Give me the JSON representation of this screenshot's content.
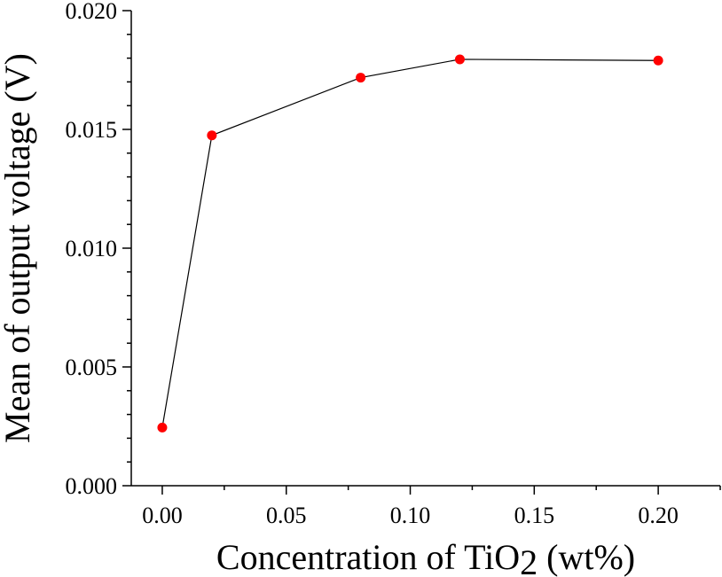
{
  "chart_data": {
    "type": "line",
    "xlabel": "Concentration of TiO",
    "xlabel_sub": "2",
    "xlabel_tail": " (wt%)",
    "ylabel": "Mean of output voltage (V)",
    "xlim": [
      -0.0125,
      0.225
    ],
    "ylim": [
      0.0,
      0.02
    ],
    "x_ticks": [
      0.0,
      0.05,
      0.1,
      0.15,
      0.2
    ],
    "x_tick_labels": [
      "0.00",
      "0.05",
      "0.10",
      "0.15",
      "0.20"
    ],
    "y_ticks": [
      0.0,
      0.005,
      0.01,
      0.015,
      0.02
    ],
    "y_tick_labels": [
      "0.000",
      "0.005",
      "0.010",
      "0.015",
      "0.020"
    ],
    "grid": false,
    "series": [
      {
        "x": [
          0.0,
          0.02,
          0.08,
          0.12,
          0.2
        ],
        "y": [
          0.00245,
          0.01475,
          0.01718,
          0.01795,
          0.0179
        ],
        "line_color": "#000000",
        "marker_color": "#ff0000"
      }
    ]
  }
}
